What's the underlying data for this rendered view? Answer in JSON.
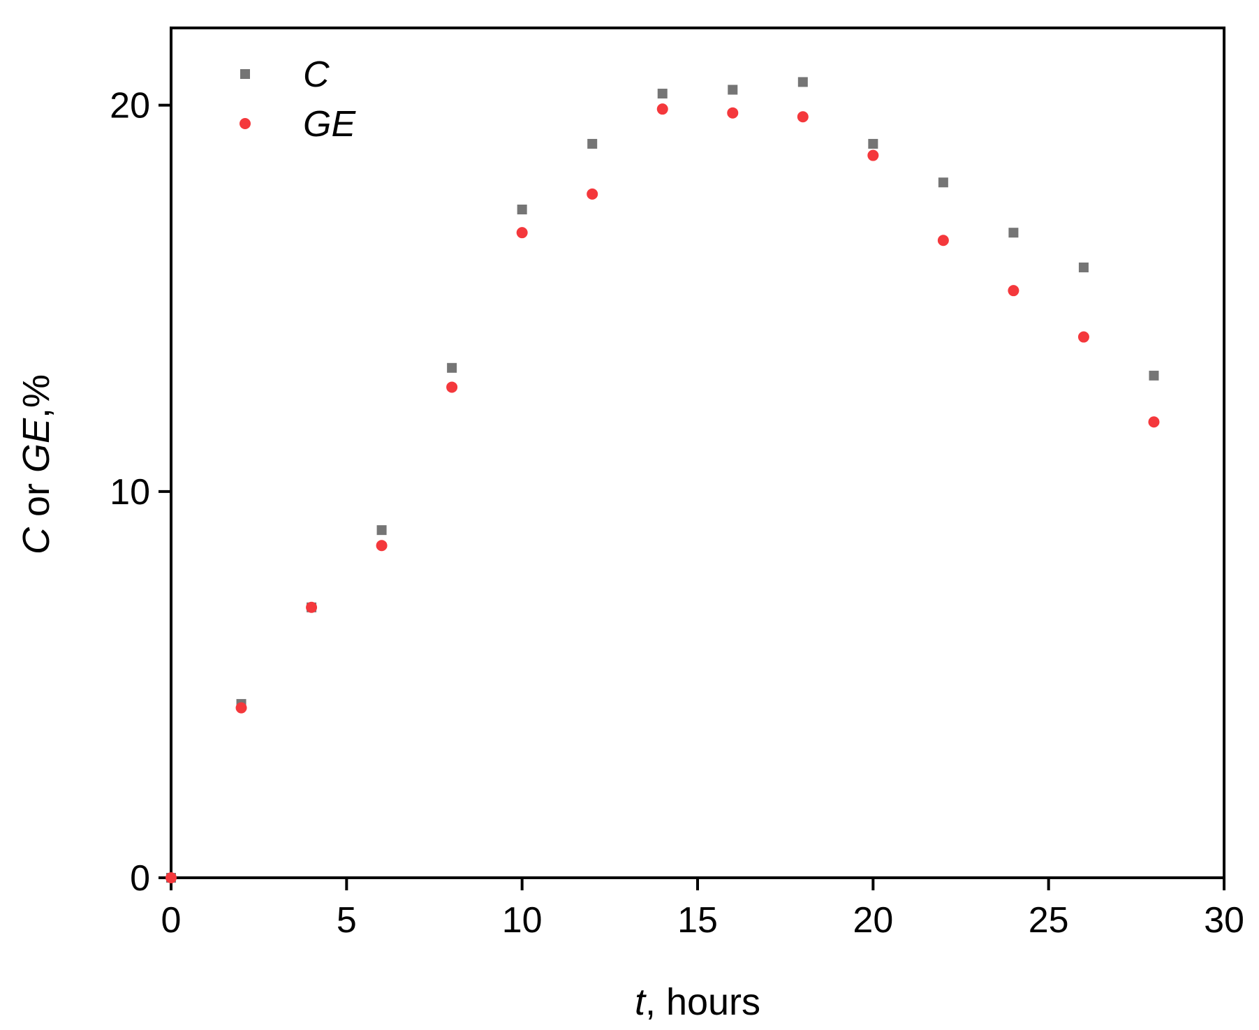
{
  "chart_data": {
    "type": "scatter",
    "xlabel_parts": [
      {
        "text": "t",
        "italic": true
      },
      {
        "text": ", hours",
        "italic": false
      }
    ],
    "ylabel_parts": [
      {
        "text": "C",
        "italic": true
      },
      {
        "text": " or ",
        "italic": false
      },
      {
        "text": "GE",
        "italic": true
      },
      {
        "text": ",%",
        "italic": false
      }
    ],
    "xlim": [
      0,
      30
    ],
    "ylim": [
      0,
      22
    ],
    "xticks": [
      0,
      5,
      10,
      15,
      20,
      25,
      30
    ],
    "yticks": [
      0,
      10,
      20
    ],
    "grid": false,
    "legend_position": "top-left",
    "series": [
      {
        "name": "C",
        "marker": "square",
        "color": "#757575",
        "x": [
          0,
          2,
          4,
          6,
          8,
          10,
          12,
          14,
          16,
          18,
          20,
          22,
          24,
          26,
          28
        ],
        "y": [
          0,
          4.5,
          7.0,
          9.0,
          13.2,
          17.3,
          19.0,
          20.3,
          20.4,
          20.6,
          19.0,
          18.0,
          16.7,
          15.8,
          13.0
        ]
      },
      {
        "name": "GE",
        "marker": "circle",
        "color": "#f4383c",
        "x": [
          0,
          2,
          4,
          6,
          8,
          10,
          12,
          14,
          16,
          18,
          20,
          22,
          24,
          26,
          28
        ],
        "y": [
          0,
          4.4,
          7.0,
          8.6,
          12.7,
          16.7,
          17.7,
          19.9,
          19.8,
          19.7,
          18.7,
          16.5,
          15.2,
          14.0,
          11.8
        ]
      }
    ]
  }
}
